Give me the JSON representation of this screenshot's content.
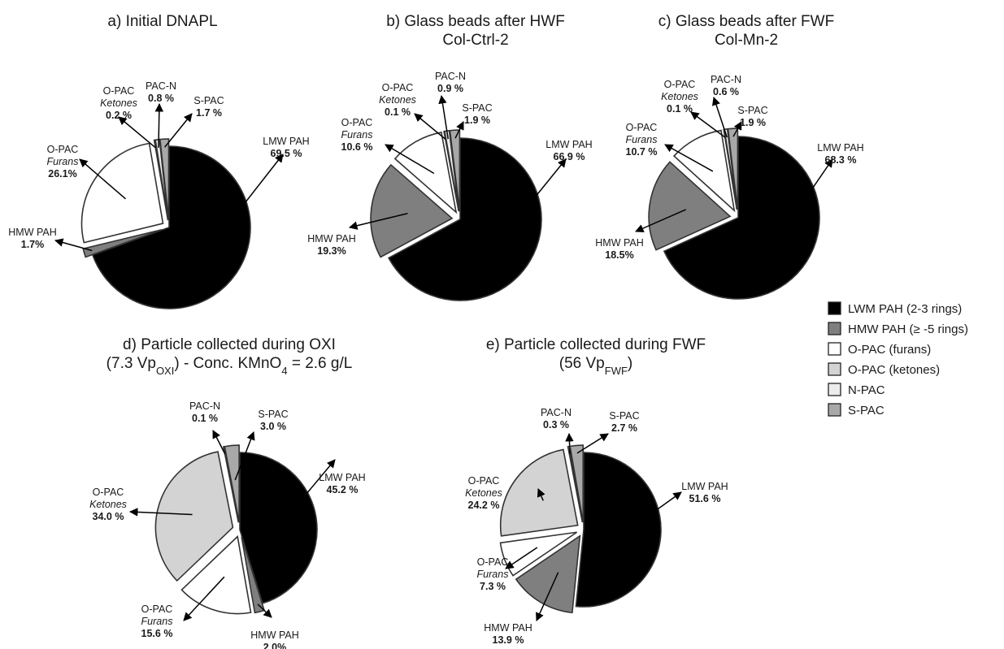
{
  "colors": {
    "lmw": "#000000",
    "hmw": "#7f7f7f",
    "furans": "#ffffff",
    "ketones": "#d3d3d3",
    "npac": "#ececec",
    "spac": "#a8a8a8",
    "stroke": "#333333"
  },
  "legend": [
    {
      "key": "lmw",
      "label": "LWM PAH (2-3 rings)"
    },
    {
      "key": "hmw",
      "label": "HMW PAH (≥ -5 rings)"
    },
    {
      "key": "furans",
      "label": "O-PAC (furans)"
    },
    {
      "key": "ketones",
      "label": "O-PAC (ketones)"
    },
    {
      "key": "npac",
      "label": "N-PAC"
    },
    {
      "key": "spac",
      "label": "S-PAC"
    }
  ],
  "chart_data": [
    {
      "type": "pie",
      "title": [
        "a) Initial DNAPL"
      ],
      "slices": [
        {
          "key": "lmw",
          "value": 69.5,
          "name": [
            "LMW PAH"
          ],
          "label": "69.5 %"
        },
        {
          "key": "hmw",
          "value": 1.7,
          "name": [
            "HMW PAH"
          ],
          "label": "1.7%"
        },
        {
          "key": "furans",
          "value": 26.1,
          "name": [
            "O-PAC",
            "Furans"
          ],
          "label": "26.1%"
        },
        {
          "key": "ketones",
          "value": 0.2,
          "name": [
            "O-PAC",
            "Ketones"
          ],
          "label": "0.2 %"
        },
        {
          "key": "npac",
          "value": 0.8,
          "name": [
            "PAC-N"
          ],
          "label": "0.8 %"
        },
        {
          "key": "spac",
          "value": 1.7,
          "name": [
            "S-PAC"
          ],
          "label": "1.7 %"
        }
      ]
    },
    {
      "type": "pie",
      "title": [
        "b) Glass beads after HWF",
        "Col-Ctrl-2"
      ],
      "slices": [
        {
          "key": "lmw",
          "value": 66.9,
          "name": [
            "LMW PAH"
          ],
          "label": "66.9 %"
        },
        {
          "key": "hmw",
          "value": 19.3,
          "name": [
            "HMW PAH"
          ],
          "label": "19.3%"
        },
        {
          "key": "furans",
          "value": 10.6,
          "name": [
            "O-PAC",
            "Furans"
          ],
          "label": "10.6 %"
        },
        {
          "key": "ketones",
          "value": 0.1,
          "name": [
            "O-PAC",
            "Ketones"
          ],
          "label": "0.1 %"
        },
        {
          "key": "npac",
          "value": 0.9,
          "name": [
            "PAC-N"
          ],
          "label": "0.9 %"
        },
        {
          "key": "spac",
          "value": 1.9,
          "name": [
            "S-PAC"
          ],
          "label": "1.9 %"
        }
      ]
    },
    {
      "type": "pie",
      "title": [
        "c) Glass beads after FWF",
        "Col-Mn-2"
      ],
      "slices": [
        {
          "key": "lmw",
          "value": 68.3,
          "name": [
            "LMW PAH"
          ],
          "label": "68.3 %"
        },
        {
          "key": "hmw",
          "value": 18.5,
          "name": [
            "HMW PAH"
          ],
          "label": "18.5%"
        },
        {
          "key": "furans",
          "value": 10.7,
          "name": [
            "O-PAC",
            "Furans"
          ],
          "label": "10.7 %"
        },
        {
          "key": "ketones",
          "value": 0.1,
          "name": [
            "O-PAC",
            "Ketones"
          ],
          "label": "0.1 %"
        },
        {
          "key": "npac",
          "value": 0.6,
          "name": [
            "PAC-N"
          ],
          "label": "0.6 %"
        },
        {
          "key": "spac",
          "value": 1.9,
          "name": [
            "S-PAC"
          ],
          "label": "1.9 %"
        }
      ]
    },
    {
      "type": "pie",
      "title": [
        "d) Particle collected during OXI",
        "(7.3 Vp{OXI}) - Conc. KMnO{4} = 2.6 g/L"
      ],
      "slices": [
        {
          "key": "lmw",
          "value": 45.2,
          "name": [
            "LMW PAH"
          ],
          "label": "45.2 %"
        },
        {
          "key": "hmw",
          "value": 2.0,
          "name": [
            "HMW PAH"
          ],
          "label": "2.0%"
        },
        {
          "key": "furans",
          "value": 15.6,
          "name": [
            "O-PAC",
            "Furans"
          ],
          "label": "15.6 %"
        },
        {
          "key": "ketones",
          "value": 34.0,
          "name": [
            "O-PAC",
            "Ketones"
          ],
          "label": "34.0 %"
        },
        {
          "key": "npac",
          "value": 0.1,
          "name": [
            "PAC-N"
          ],
          "label": "0.1 %"
        },
        {
          "key": "spac",
          "value": 3.0,
          "name": [
            "S-PAC"
          ],
          "label": "3.0 %"
        }
      ]
    },
    {
      "type": "pie",
      "title": [
        "e) Particle collected during FWF",
        "(56 Vp{FWF})"
      ],
      "slices": [
        {
          "key": "lmw",
          "value": 51.6,
          "name": [
            "LMW PAH"
          ],
          "label": "51.6 %"
        },
        {
          "key": "hmw",
          "value": 13.9,
          "name": [
            "HMW PAH"
          ],
          "label": "13.9 %"
        },
        {
          "key": "furans",
          "value": 7.3,
          "name": [
            "O-PAC",
            "Furans"
          ],
          "label": "7.3 %"
        },
        {
          "key": "ketones",
          "value": 24.2,
          "name": [
            "O-PAC",
            "Ketones"
          ],
          "label": "24.2 %"
        },
        {
          "key": "npac",
          "value": 0.3,
          "name": [
            "PAC-N"
          ],
          "label": "0.3 %"
        },
        {
          "key": "spac",
          "value": 2.7,
          "name": [
            "S-PAC"
          ],
          "label": "2.7 %"
        }
      ]
    }
  ]
}
